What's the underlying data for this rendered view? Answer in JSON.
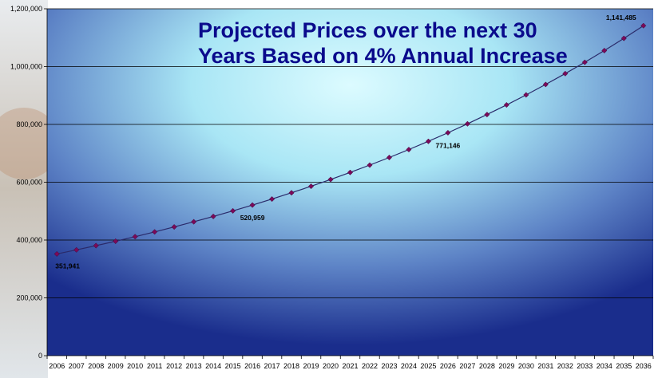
{
  "chart_data": {
    "type": "line",
    "title": [
      "Projected Prices over the next 30",
      "Years Based on 4% Annual Increase"
    ],
    "categories": [
      "2006",
      "2007",
      "2008",
      "2009",
      "2010",
      "2011",
      "2012",
      "2013",
      "2014",
      "2015",
      "2016",
      "2017",
      "2018",
      "2019",
      "2020",
      "2021",
      "2022",
      "2023",
      "2024",
      "2025",
      "2026",
      "2027",
      "2028",
      "2029",
      "2030",
      "2031",
      "2032",
      "2033",
      "2034",
      "2035",
      "2036"
    ],
    "values": [
      351941,
      366019,
      380659,
      395886,
      411721,
      428190,
      445317,
      463130,
      481655,
      500921,
      520959,
      541797,
      563469,
      586008,
      609448,
      633826,
      659179,
      685546,
      712968,
      741487,
      771146,
      801991,
      834071,
      867434,
      902131,
      938216,
      975745,
      1014775,
      1055366,
      1097581,
      1141485
    ],
    "ylim": [
      0,
      1200000
    ],
    "yticks": [
      0,
      200000,
      400000,
      600000,
      800000,
      1000000,
      1200000
    ],
    "ytick_labels": [
      "0",
      "200,000",
      "400,000",
      "600,000",
      "800,000",
      "1,000,000",
      "1,200,000"
    ],
    "grid": true,
    "colors": {
      "line": "#2a2a6a",
      "marker": "#7a0a5a",
      "grid": "#000000",
      "title": "#0a0a8c"
    },
    "data_labels": [
      {
        "index": 0,
        "text": "351,941"
      },
      {
        "index": 10,
        "text": "520,959"
      },
      {
        "index": 20,
        "text": "771,146"
      },
      {
        "index": 30,
        "text": "1,141,485"
      }
    ]
  }
}
